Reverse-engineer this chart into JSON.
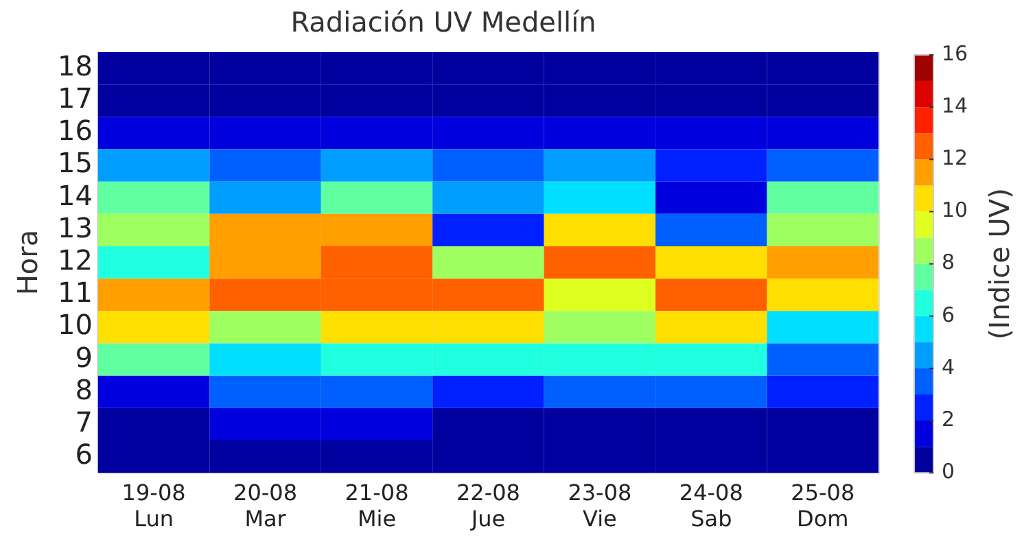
{
  "chart_data": {
    "type": "heatmap",
    "title": "Radiación UV Medellín",
    "ylabel": "Hora",
    "clabel": "(Indice UV)",
    "categories": [
      "19-08\nLun",
      "20-08\nMar",
      "21-08\nMie",
      "22-08\nJue",
      "23-08\nVie",
      "24-08\nSab",
      "25-08\nDom"
    ],
    "y_categories": [
      "18",
      "17",
      "16",
      "15",
      "14",
      "13",
      "12",
      "11",
      "10",
      "9",
      "8",
      "7",
      "6"
    ],
    "cells": [
      [
        0,
        0,
        0,
        0,
        0,
        0,
        0
      ],
      [
        0,
        0,
        0,
        0,
        0,
        0,
        0
      ],
      [
        1,
        1,
        1,
        1,
        1,
        1,
        1
      ],
      [
        4,
        3,
        4,
        3,
        4,
        2,
        3
      ],
      [
        7,
        4,
        7,
        4,
        5,
        1,
        7
      ],
      [
        8,
        11,
        11,
        2,
        10,
        3,
        8
      ],
      [
        6,
        11,
        12,
        8,
        12,
        10,
        11
      ],
      [
        11,
        12,
        12,
        12,
        9,
        12,
        10
      ],
      [
        10,
        8,
        10,
        10,
        8,
        10,
        5
      ],
      [
        7,
        5,
        6,
        6,
        6,
        6,
        3
      ],
      [
        1,
        3,
        3,
        2,
        3,
        3,
        2
      ],
      [
        0,
        1,
        1,
        0,
        0,
        0,
        0
      ],
      [
        0,
        0,
        0,
        0,
        0,
        0,
        0
      ]
    ],
    "clim": [
      0,
      16
    ],
    "cticks": [
      0,
      2,
      4,
      6,
      8,
      10,
      12,
      14,
      16
    ],
    "grid": "x"
  }
}
